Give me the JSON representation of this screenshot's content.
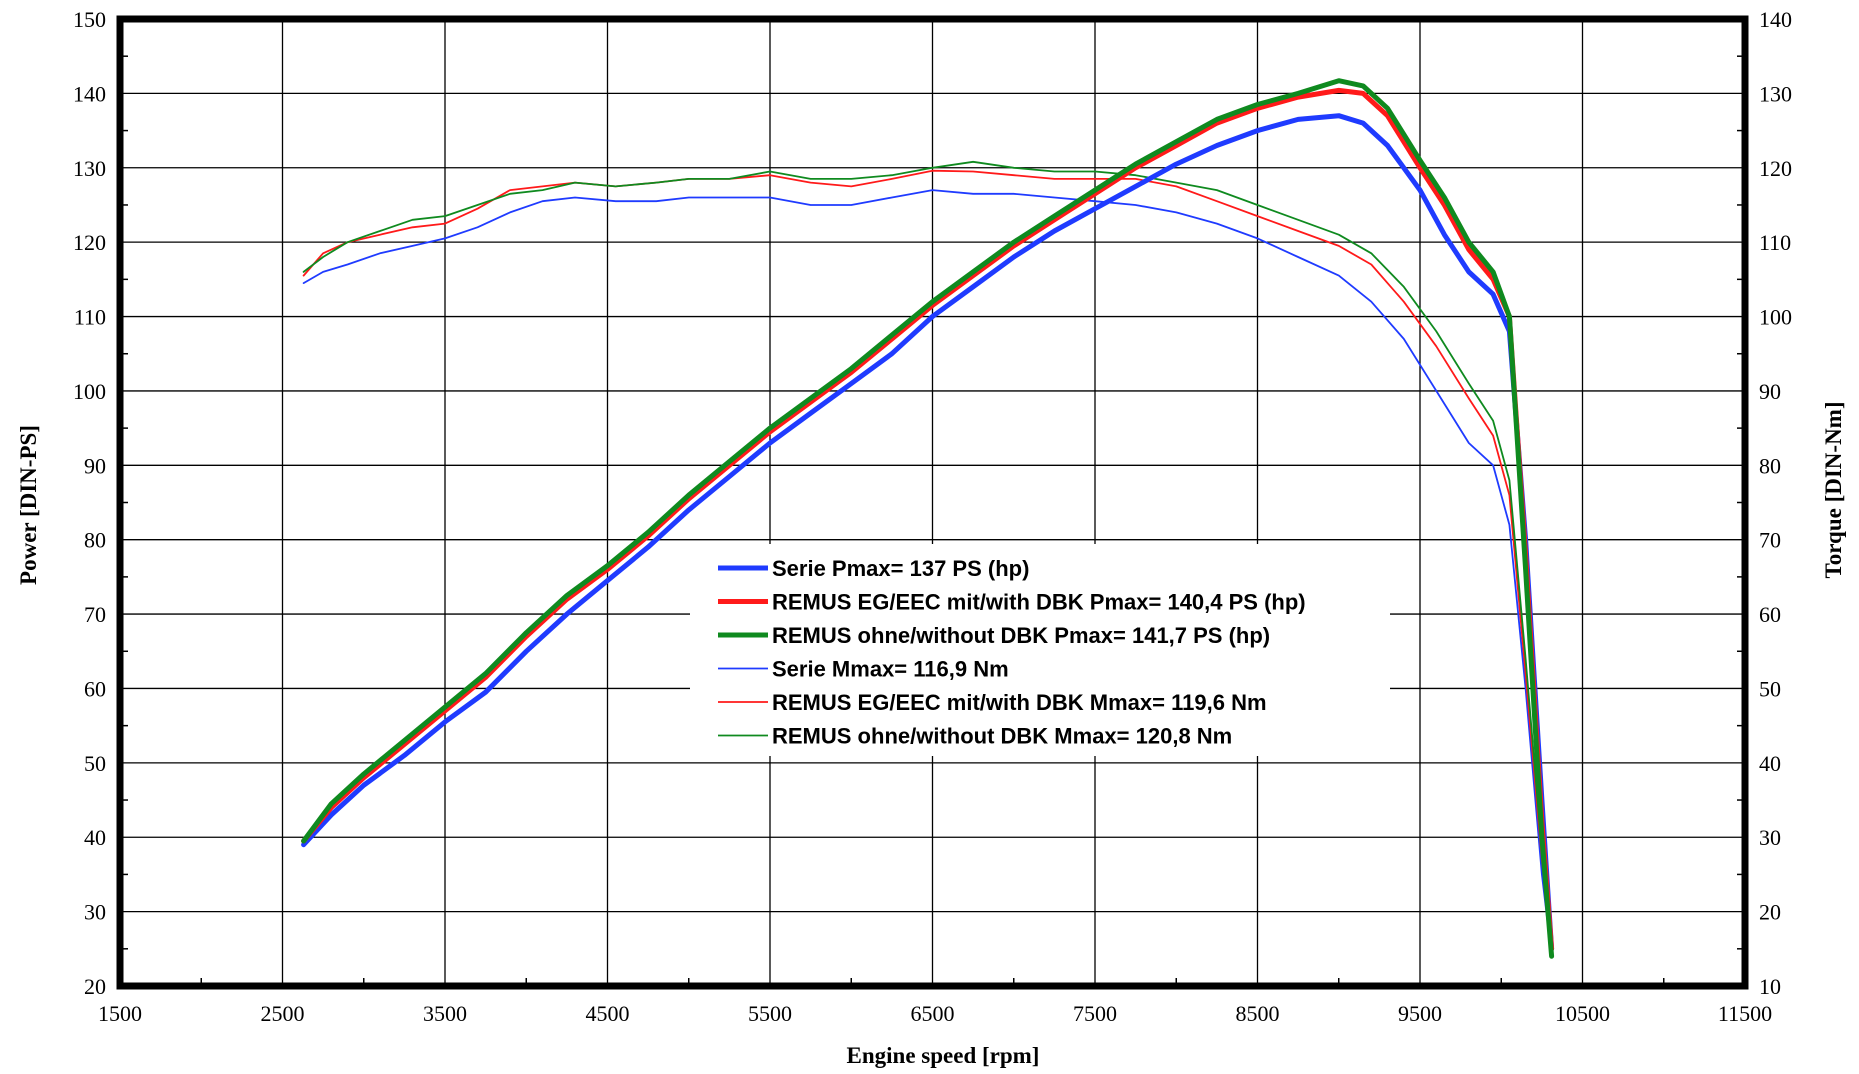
{
  "chart_data": {
    "type": "line",
    "xlabel": "Engine speed [rpm]",
    "ylabel": "Power [DIN-PS]",
    "y2label": "Torque [DIN-Nm]",
    "xlim": [
      1500,
      11500
    ],
    "ylim": [
      20,
      150
    ],
    "y2lim": [
      10,
      140
    ],
    "x_ticks": [
      "1500",
      "2500",
      "3500",
      "4500",
      "5500",
      "6500",
      "7500",
      "8500",
      "9500",
      "10500",
      "11500"
    ],
    "y_ticks": [
      "20",
      "30",
      "40",
      "50",
      "60",
      "70",
      "80",
      "90",
      "100",
      "110",
      "120",
      "130",
      "140",
      "150"
    ],
    "y2_ticks": [
      "10",
      "20",
      "30",
      "40",
      "50",
      "60",
      "70",
      "80",
      "90",
      "100",
      "110",
      "120",
      "130",
      "140"
    ],
    "grid": true,
    "legend_position": "center-bottom",
    "series": [
      {
        "name": "Serie Pmax= 137 PS (hp)",
        "axis": "left",
        "color": "#1f3bff",
        "width": "thick",
        "x": [
          2630,
          2800,
          3000,
          3250,
          3500,
          3750,
          4000,
          4250,
          4500,
          4750,
          5000,
          5250,
          5500,
          5750,
          6000,
          6250,
          6500,
          6750,
          7000,
          7250,
          7500,
          7750,
          8000,
          8250,
          8500,
          8750,
          9000,
          9150,
          9300,
          9500,
          9650,
          9800,
          9950,
          10050,
          10150,
          10250,
          10310
        ],
        "y": [
          39,
          43,
          47,
          51,
          55.5,
          59.5,
          65,
          70,
          74.5,
          79,
          84,
          88.5,
          93,
          97,
          101,
          105,
          110,
          114,
          118,
          121.5,
          124.5,
          127.5,
          130.5,
          133,
          135,
          136.5,
          137,
          136,
          133,
          127,
          121,
          116,
          113,
          108,
          80,
          45,
          25
        ]
      },
      {
        "name": "REMUS EG/EEC mit/with DBK Pmax=  140,4 PS (hp)",
        "axis": "left",
        "color": "#ff1a1a",
        "width": "thick",
        "x": [
          2630,
          2800,
          3000,
          3250,
          3500,
          3750,
          4000,
          4250,
          4500,
          4750,
          5000,
          5250,
          5500,
          5750,
          6000,
          6250,
          6500,
          6750,
          7000,
          7250,
          7500,
          7750,
          8000,
          8250,
          8500,
          8750,
          9000,
          9150,
          9300,
          9500,
          9650,
          9800,
          9950,
          10050,
          10150,
          10250,
          10310
        ],
        "y": [
          39.5,
          44,
          48,
          52.5,
          57,
          61.5,
          67,
          72,
          76,
          80.5,
          85.5,
          90,
          94.5,
          98.5,
          102.5,
          107,
          111.5,
          115.5,
          119.5,
          123,
          126.5,
          130,
          133,
          136,
          138,
          139.5,
          140.4,
          140,
          137,
          130,
          125,
          119,
          115,
          110,
          78,
          42,
          25
        ]
      },
      {
        "name": "REMUS ohne/without DBK Pmax= 141,7 PS (hp)",
        "axis": "left",
        "color": "#0f8a1f",
        "width": "thick",
        "x": [
          2630,
          2800,
          3000,
          3250,
          3500,
          3750,
          4000,
          4250,
          4500,
          4750,
          5000,
          5250,
          5500,
          5750,
          6000,
          6250,
          6500,
          6750,
          7000,
          7250,
          7500,
          7750,
          8000,
          8250,
          8500,
          8750,
          9000,
          9150,
          9300,
          9500,
          9650,
          9800,
          9950,
          10050,
          10150,
          10250,
          10310
        ],
        "y": [
          39.5,
          44.5,
          48.5,
          53,
          57.5,
          62,
          67.5,
          72.5,
          76.5,
          81,
          86,
          90.5,
          95,
          99,
          103,
          107.5,
          112,
          116,
          120,
          123.5,
          127,
          130.5,
          133.5,
          136.5,
          138.5,
          140,
          141.7,
          141,
          138,
          131,
          126,
          120,
          116,
          110,
          76,
          40,
          24
        ]
      },
      {
        "name": "Serie Mmax= 116,9 Nm",
        "axis": "right",
        "color": "#1f3bff",
        "width": "thin",
        "x": [
          2630,
          2750,
          2900,
          3100,
          3300,
          3500,
          3700,
          3900,
          4100,
          4300,
          4550,
          4800,
          5000,
          5250,
          5500,
          5750,
          6000,
          6250,
          6500,
          6750,
          7000,
          7250,
          7500,
          7750,
          8000,
          8250,
          8500,
          8750,
          9000,
          9200,
          9400,
          9600,
          9800,
          9950,
          10050,
          10150,
          10250,
          10310
        ],
        "y": [
          104.5,
          106,
          107,
          108.5,
          109.5,
          110.5,
          112,
          114,
          115.5,
          116,
          115.5,
          115.5,
          116,
          116,
          116,
          115,
          115,
          116,
          117,
          116.5,
          116.5,
          116,
          115.5,
          115,
          114,
          112.5,
          110.5,
          108,
          105.5,
          102,
          97,
          90,
          83,
          80,
          72,
          50,
          25,
          14
        ]
      },
      {
        "name": "REMUS EG/EEC mit/with DBK Mmax= 119,6 Nm",
        "axis": "right",
        "color": "#ff1a1a",
        "width": "thin",
        "x": [
          2630,
          2750,
          2900,
          3100,
          3300,
          3500,
          3700,
          3900,
          4100,
          4300,
          4550,
          4800,
          5000,
          5250,
          5500,
          5750,
          6000,
          6250,
          6500,
          6750,
          7000,
          7250,
          7500,
          7750,
          8000,
          8250,
          8500,
          8750,
          9000,
          9200,
          9400,
          9600,
          9800,
          9950,
          10050,
          10150,
          10250,
          10310
        ],
        "y": [
          105.5,
          108.5,
          110,
          111,
          112,
          112.5,
          114.5,
          117,
          117.5,
          118,
          117.5,
          118,
          118.5,
          118.5,
          119,
          118,
          117.5,
          118.5,
          119.6,
          119.5,
          119,
          118.5,
          118.5,
          118.5,
          117.5,
          115.5,
          113.5,
          111.5,
          109.5,
          107,
          102,
          96,
          89,
          84,
          76,
          52,
          27,
          15
        ]
      },
      {
        "name": "REMUS ohne/without DBK Mmax= 120,8 Nm",
        "axis": "right",
        "color": "#0f8a1f",
        "width": "thin",
        "x": [
          2630,
          2750,
          2900,
          3100,
          3300,
          3500,
          3700,
          3900,
          4100,
          4300,
          4550,
          4800,
          5000,
          5250,
          5500,
          5750,
          6000,
          6250,
          6500,
          6750,
          7000,
          7250,
          7500,
          7750,
          8000,
          8250,
          8500,
          8750,
          9000,
          9200,
          9400,
          9600,
          9800,
          9950,
          10050,
          10150,
          10250,
          10310
        ],
        "y": [
          106,
          108,
          110,
          111.5,
          113,
          113.5,
          115,
          116.5,
          117,
          118,
          117.5,
          118,
          118.5,
          118.5,
          119.5,
          118.5,
          118.5,
          119,
          120,
          120.8,
          120,
          119.5,
          119.5,
          119,
          118,
          117,
          115,
          113,
          111,
          108.5,
          104,
          98,
          91,
          86,
          78,
          54,
          28,
          15
        ]
      }
    ]
  }
}
